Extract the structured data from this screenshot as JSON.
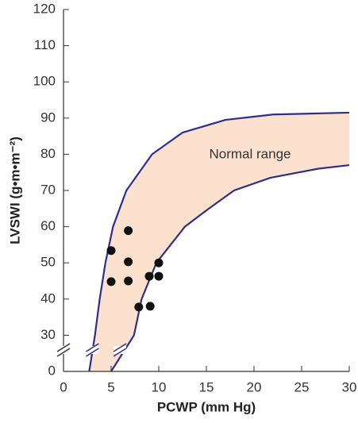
{
  "chart_data": {
    "type": "scatter",
    "xlabel": "PCWP (mm Hg)",
    "ylabel": "LVSWI (g•m•m⁻²)",
    "annotation": "Normal range",
    "xlim": [
      0,
      30
    ],
    "xticks": [
      0,
      5,
      10,
      15,
      20,
      25,
      30
    ],
    "ylim": [
      0,
      120
    ],
    "ybreak": [
      0,
      20
    ],
    "yticks": [
      0,
      30,
      40,
      50,
      60,
      70,
      80,
      90,
      100,
      110,
      120
    ],
    "x": [
      5,
      5,
      6.8,
      6.8,
      6.8,
      9,
      10,
      10,
      7.9,
      9.1
    ],
    "values": [
      53.4,
      44.8,
      58.9,
      50.3,
      45,
      46.3,
      50,
      46.3,
      37.8,
      38
    ],
    "color": "#111111",
    "band": {
      "color": "#fde1cf",
      "line_color": "#2e2f8a",
      "upper": {
        "x": [
          2.7,
          3.3,
          3.8,
          4.4,
          5.2,
          6.6,
          9.3,
          12.5,
          17,
          22,
          30
        ],
        "y": [
          0,
          30,
          40,
          50,
          60,
          70,
          80,
          86,
          89.5,
          91,
          91.5
        ]
      },
      "lower": {
        "x": [
          5,
          7.4,
          8.2,
          9.75,
          12.75,
          15,
          17.9,
          21.7,
          26.7,
          30
        ],
        "y": [
          0,
          30,
          40,
          50,
          60,
          64.5,
          70,
          73.5,
          76,
          77
        ]
      }
    }
  }
}
